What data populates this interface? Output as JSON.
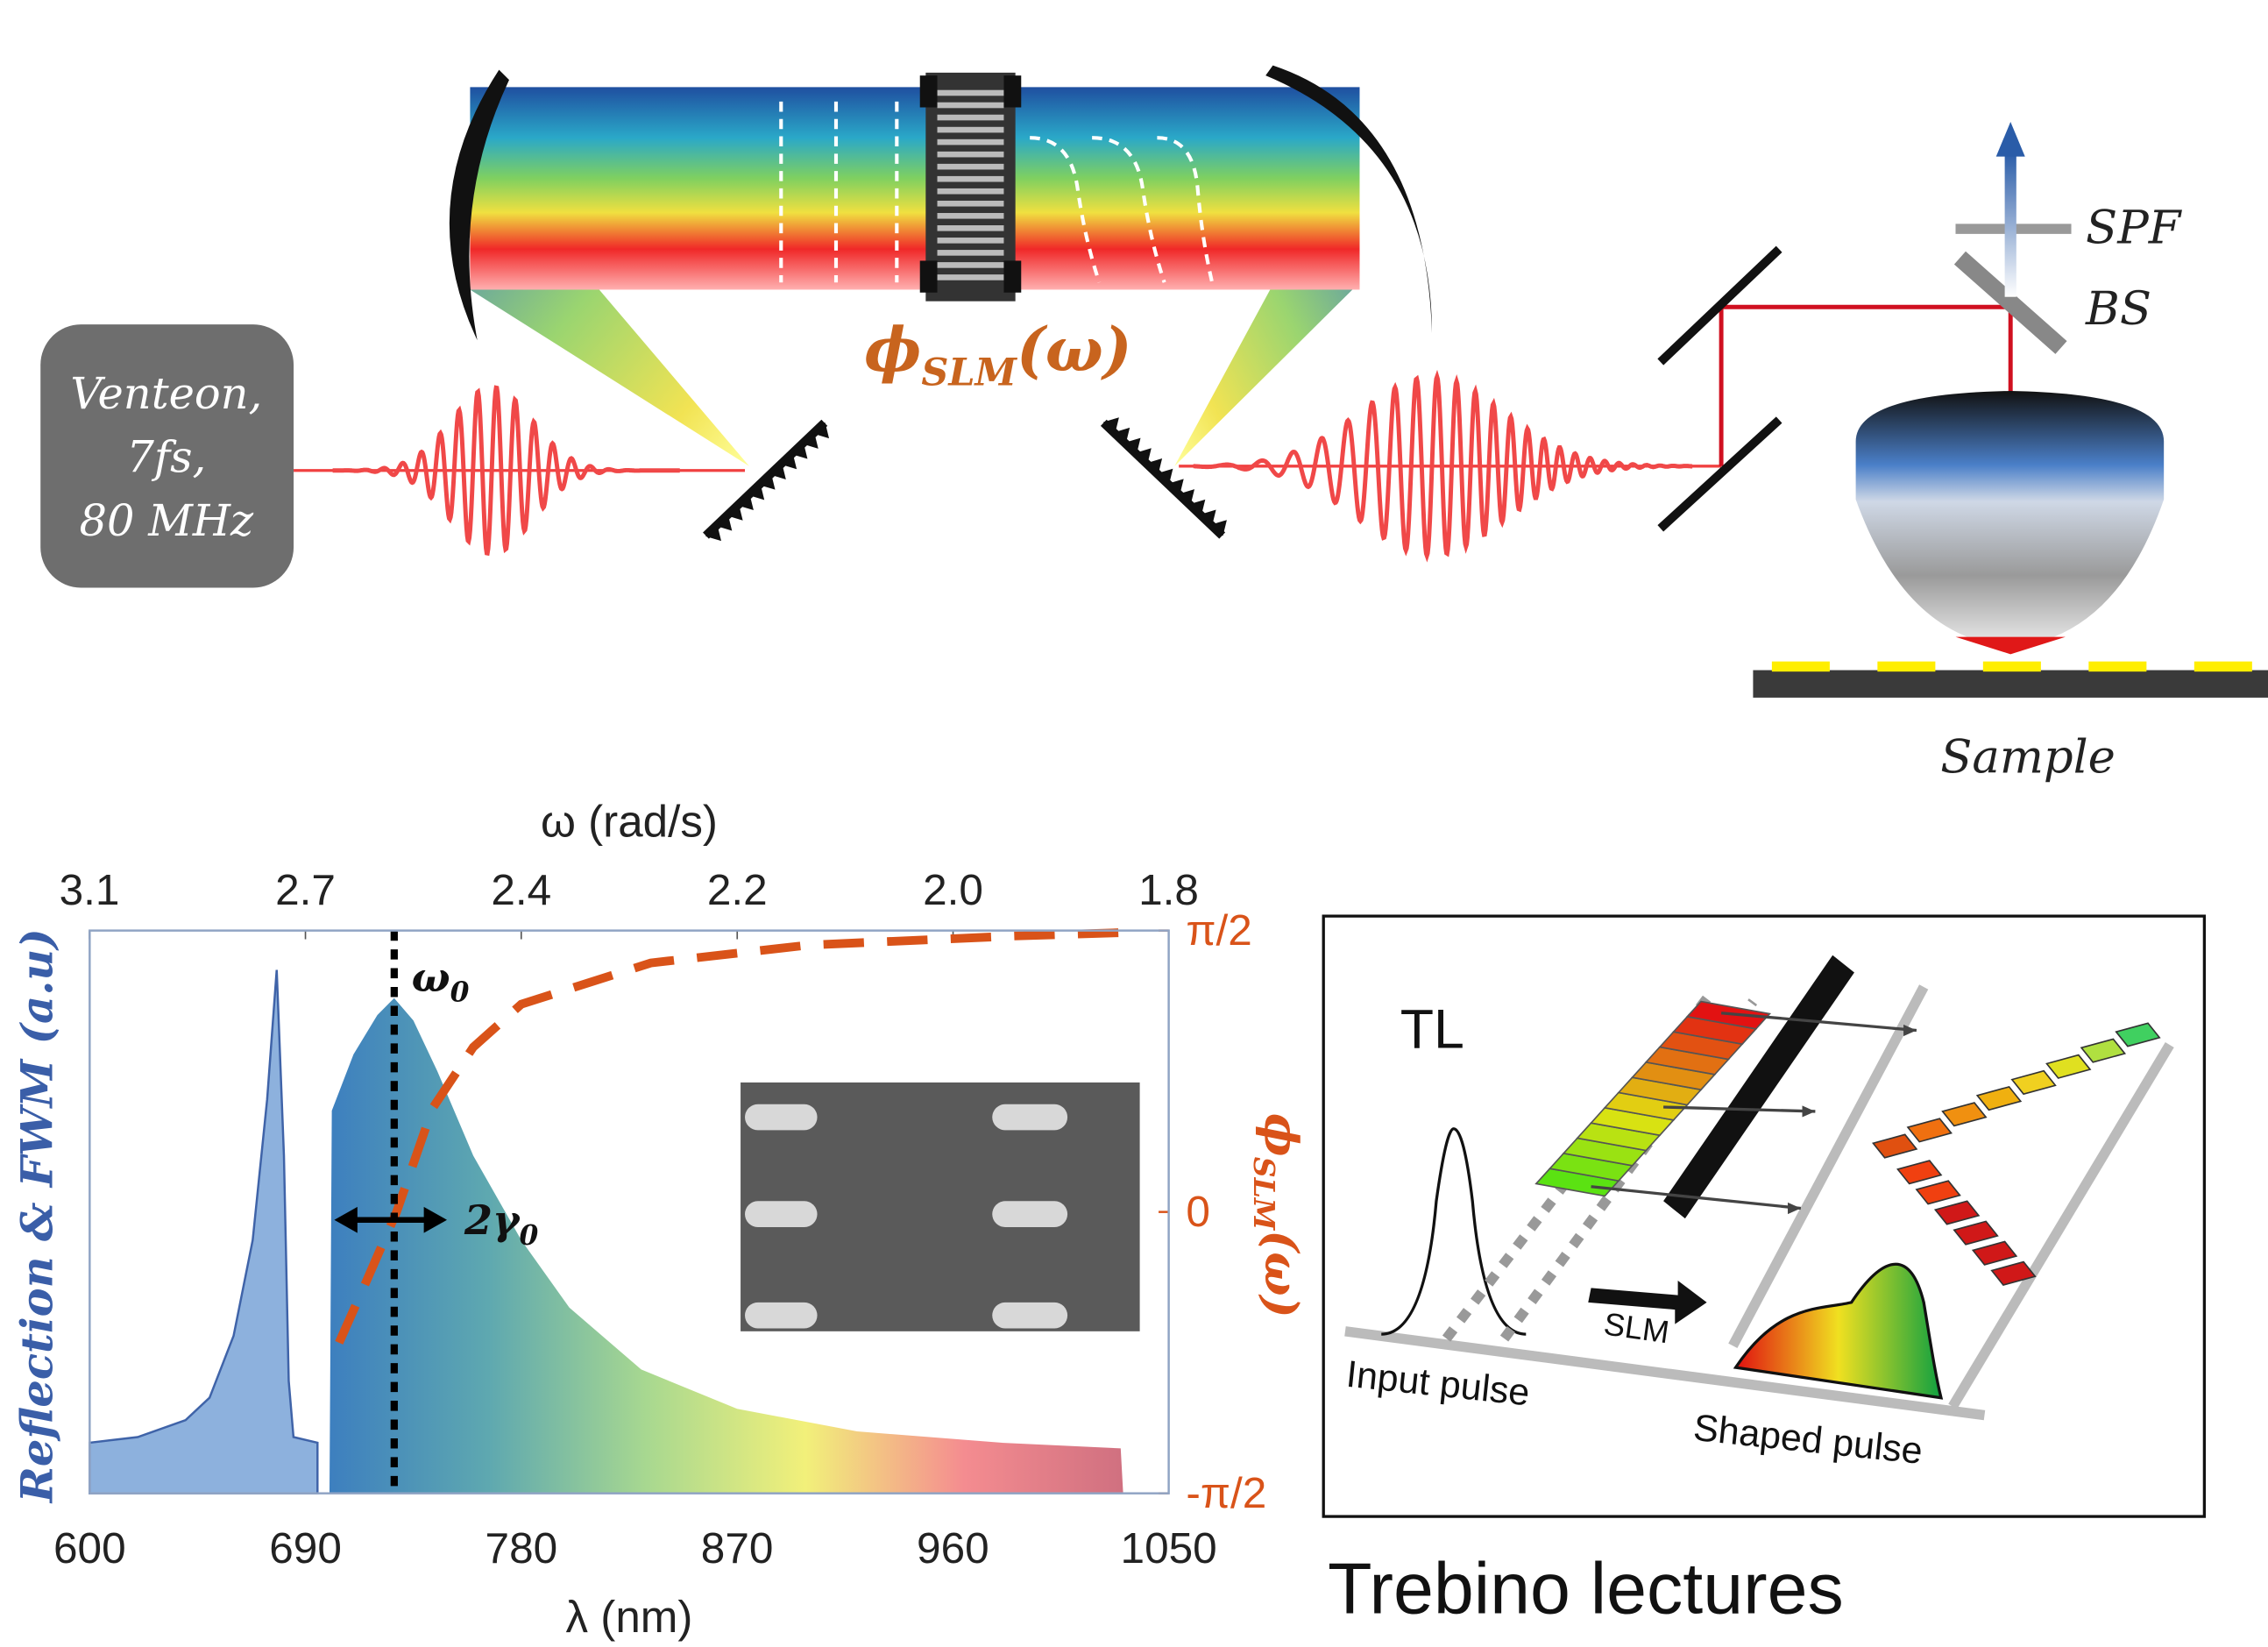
{
  "setup": {
    "source": [
      "Venteon,",
      "7fs,",
      "80 MHz"
    ],
    "shaper": {
      "symbol": "ϕ",
      "sub": "SLM",
      "arg": "(ω)"
    },
    "filter": "SPF",
    "splitter": "BS",
    "sample": "Sample"
  },
  "schematic": {
    "label": "TL",
    "device": "SLM",
    "input": "Input pulse",
    "output": "Shaped pulse"
  },
  "credit": "Trebino lectures",
  "chart_data": {
    "type": "line",
    "xlabel": "λ (nm)",
    "x2label": "ω (rad/s)",
    "ylabel": "Reflection & FWM (a.u)",
    "y2label": {
      "symbol": "ϕ",
      "sub": "SLM",
      "arg": "(ω)"
    },
    "xlim": [
      600,
      1050
    ],
    "xticks": [
      600,
      690,
      780,
      870,
      960,
      1050
    ],
    "x2ticks": [
      {
        "value": 3.14,
        "label": "3.1"
      },
      {
        "value": 2.73,
        "label": "2.7"
      },
      {
        "value": 2.415,
        "label": "2.4"
      },
      {
        "value": 2.165,
        "label": "2.2"
      },
      {
        "value": 1.962,
        "label": "2.0"
      },
      {
        "value": 1.794,
        "label": "1.8"
      }
    ],
    "ylim": [
      0,
      1
    ],
    "y2lim": [
      -1.5708,
      1.5708
    ],
    "y2ticks": [
      {
        "value": -1.5708,
        "label": "-π/2"
      },
      0,
      {
        "value": 1.5708,
        "label": "π/2"
      }
    ],
    "series": [
      {
        "x": [
          600,
          620,
          640,
          650,
          660,
          668,
          674,
          678,
          681,
          683,
          685,
          695
        ],
        "values": [
          0.09,
          0.1,
          0.13,
          0.17,
          0.28,
          0.45,
          0.7,
          0.93,
          0.6,
          0.2,
          0.1,
          0.09
        ],
        "color": "#3f63a8",
        "fill": "#8db1dd"
      },
      {
        "x": [
          700,
          701,
          710,
          720,
          727,
          735,
          745,
          760,
          780,
          800,
          830,
          870,
          920,
          980,
          1030,
          1031
        ],
        "values": [
          0,
          0.68,
          0.78,
          0.85,
          0.88,
          0.84,
          0.75,
          0.6,
          0.45,
          0.33,
          0.22,
          0.15,
          0.11,
          0.09,
          0.08,
          0
        ],
        "gradient": [
          "#3d7fbf",
          "#5ea8b0",
          "#a8d890",
          "#f2f07a",
          "#f48c90",
          "#d07080"
        ]
      },
      {
        "x": [
          704,
          715,
          728,
          743,
          760,
          780,
          834,
          900,
          985,
          1033
        ],
        "values": [
          -0.73,
          -0.4,
          0,
          0.58,
          0.92,
          1.16,
          1.39,
          1.49,
          1.54,
          1.56
        ],
        "color": "#d95319",
        "dashed": true,
        "axis": "y2"
      }
    ],
    "annotations": [
      {
        "text": "ω",
        "sub": "0",
        "x": 727
      },
      {
        "text": "2γ",
        "sub": "0",
        "x": [
          702,
          749
        ]
      }
    ]
  }
}
